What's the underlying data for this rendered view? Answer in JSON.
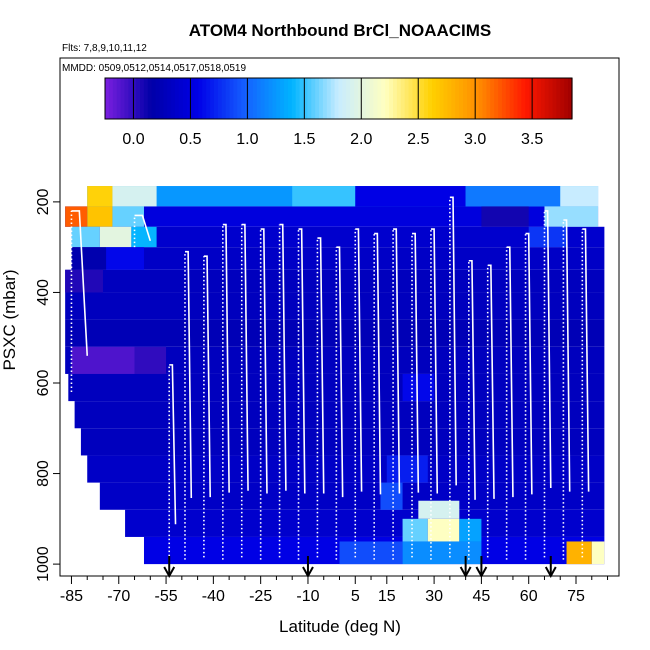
{
  "chart_data": {
    "type": "heatmap",
    "title": "ATOM4 Northbound BrCl_NOAACIMS",
    "flights_label": "Flts: 7,8,9,10,11,12",
    "mmdd_label": "MMDD: 0509,0512,0514,0517,0518,0519",
    "xlabel": "Latitude (deg N)",
    "ylabel": "PSXC (mbar)",
    "xlim": [
      -88,
      88
    ],
    "ylim": [
      1020,
      0
    ],
    "x_ticks": [
      -85,
      -70,
      -55,
      -40,
      -25,
      -10,
      5,
      15,
      30,
      45,
      60,
      75
    ],
    "y_ticks": [
      200,
      400,
      600,
      800,
      1000
    ],
    "colorbar": {
      "range": [
        -0.25,
        3.85
      ],
      "ticks": [
        0.0,
        0.5,
        1.0,
        1.5,
        2.0,
        2.5,
        3.0,
        3.5
      ],
      "tick_labels": [
        "0.0",
        "0.5",
        "1.0",
        "1.5",
        "2.0",
        "2.5",
        "3.0",
        "3.5"
      ],
      "colors": [
        "#7b1fe0",
        "#0000a8",
        "#0000e8",
        "#1560ff",
        "#00b4ff",
        "#c8ecff",
        "#ffffc0",
        "#ffd000",
        "#ff8c00",
        "#ff1800",
        "#a00000"
      ]
    },
    "latitude_markers": [
      -54,
      -10,
      40,
      45,
      67
    ],
    "field_description": "BrCl mixing ratio binned by latitude and pressure; mostly 0.0-0.5 with elevated values (2.0-3.0) near 200-250 mbar at high southern/northern latitudes and near 900-950 mbar around 25-40 N",
    "bands": [
      {
        "p_top": 165,
        "p_bot": 210,
        "x0": -80,
        "x1": 82,
        "value": 1.25
      },
      {
        "p_top": 210,
        "p_bot": 255,
        "x0": -87,
        "x1": 82,
        "value": 0.5
      },
      {
        "p_top": 255,
        "p_bot": 300,
        "x0": -85,
        "x1": 84,
        "value": 0.4
      },
      {
        "p_top": 300,
        "p_bot": 350,
        "x0": -85,
        "x1": 84,
        "value": 0.35
      },
      {
        "p_top": 350,
        "p_bot": 400,
        "x0": -87,
        "x1": 84,
        "value": 0.3
      },
      {
        "p_top": 400,
        "p_bot": 460,
        "x0": -87,
        "x1": 84,
        "value": 0.3
      },
      {
        "p_top": 460,
        "p_bot": 520,
        "x0": -87,
        "x1": 84,
        "value": 0.25
      },
      {
        "p_top": 520,
        "p_bot": 580,
        "x0": -87,
        "x1": 84,
        "value": 0.3
      },
      {
        "p_top": 580,
        "p_bot": 640,
        "x0": -86,
        "x1": 84,
        "value": 0.3
      },
      {
        "p_top": 640,
        "p_bot": 700,
        "x0": -84,
        "x1": 84,
        "value": 0.3
      },
      {
        "p_top": 700,
        "p_bot": 760,
        "x0": -82,
        "x1": 84,
        "value": 0.3
      },
      {
        "p_top": 760,
        "p_bot": 820,
        "x0": -80,
        "x1": 84,
        "value": 0.35
      },
      {
        "p_top": 820,
        "p_bot": 880,
        "x0": -76,
        "x1": 84,
        "value": 0.35
      },
      {
        "p_top": 880,
        "p_bot": 940,
        "x0": -68,
        "x1": 84,
        "value": 0.4
      },
      {
        "p_top": 940,
        "p_bot": 1000,
        "x0": -62,
        "x1": 84,
        "value": 0.55
      }
    ],
    "patches": [
      {
        "p_top": 165,
        "p_bot": 210,
        "x0": -80,
        "x1": -72,
        "value": 2.6
      },
      {
        "p_top": 165,
        "p_bot": 210,
        "x0": -72,
        "x1": -58,
        "value": 1.9
      },
      {
        "p_top": 165,
        "p_bot": 210,
        "x0": -15,
        "x1": 5,
        "value": 1.5
      },
      {
        "p_top": 165,
        "p_bot": 210,
        "x0": 5,
        "x1": 40,
        "value": 0.55
      },
      {
        "p_top": 165,
        "p_bot": 210,
        "x0": 40,
        "x1": 70,
        "value": 1.1
      },
      {
        "p_top": 165,
        "p_bot": 210,
        "x0": 70,
        "x1": 82,
        "value": 1.8
      },
      {
        "p_top": 210,
        "p_bot": 255,
        "x0": -87,
        "x1": -80,
        "value": 3.2
      },
      {
        "p_top": 210,
        "p_bot": 255,
        "x0": -80,
        "x1": -72,
        "value": 2.7
      },
      {
        "p_top": 210,
        "p_bot": 255,
        "x0": -72,
        "x1": -62,
        "value": 1.6
      },
      {
        "p_top": 210,
        "p_bot": 255,
        "x0": 45,
        "x1": 60,
        "value": 0.1
      },
      {
        "p_top": 210,
        "p_bot": 255,
        "x0": 65,
        "x1": 82,
        "value": 1.7
      },
      {
        "p_top": 255,
        "p_bot": 300,
        "x0": -85,
        "x1": -76,
        "value": 1.6
      },
      {
        "p_top": 255,
        "p_bot": 300,
        "x0": -76,
        "x1": -66,
        "value": 2.0
      },
      {
        "p_top": 255,
        "p_bot": 300,
        "x0": -66,
        "x1": -58,
        "value": 1.4
      },
      {
        "p_top": 255,
        "p_bot": 300,
        "x0": 60,
        "x1": 72,
        "value": 0.8
      },
      {
        "p_top": 300,
        "p_bot": 350,
        "x0": -85,
        "x1": -74,
        "value": 0.2
      },
      {
        "p_top": 300,
        "p_bot": 350,
        "x0": -74,
        "x1": -62,
        "value": 0.6
      },
      {
        "p_top": 350,
        "p_bot": 400,
        "x0": -87,
        "x1": -75,
        "value": 0.05
      },
      {
        "p_top": 520,
        "p_bot": 580,
        "x0": -85,
        "x1": -65,
        "value": -0.1
      },
      {
        "p_top": 520,
        "p_bot": 580,
        "x0": -65,
        "x1": -55,
        "value": 0.0
      },
      {
        "p_top": 580,
        "p_bot": 640,
        "x0": 20,
        "x1": 30,
        "value": 0.6
      },
      {
        "p_top": 760,
        "p_bot": 820,
        "x0": 15,
        "x1": 28,
        "value": 0.7
      },
      {
        "p_top": 820,
        "p_bot": 880,
        "x0": 13,
        "x1": 20,
        "value": 0.9
      },
      {
        "p_top": 860,
        "p_bot": 900,
        "x0": 25,
        "x1": 38,
        "value": 1.9
      },
      {
        "p_top": 900,
        "p_bot": 950,
        "x0": 20,
        "x1": 28,
        "value": 1.6
      },
      {
        "p_top": 900,
        "p_bot": 950,
        "x0": 28,
        "x1": 38,
        "value": 2.2
      },
      {
        "p_top": 900,
        "p_bot": 950,
        "x0": 38,
        "x1": 45,
        "value": 1.3
      },
      {
        "p_top": 950,
        "p_bot": 1000,
        "x0": 0,
        "x1": 20,
        "value": 0.9
      },
      {
        "p_top": 950,
        "p_bot": 1000,
        "x0": 20,
        "x1": 45,
        "value": 1.2
      },
      {
        "p_top": 950,
        "p_bot": 1000,
        "x0": 72,
        "x1": 80,
        "value": 2.8
      },
      {
        "p_top": 950,
        "p_bot": 1000,
        "x0": 80,
        "x1": 84,
        "value": 2.2
      }
    ],
    "flight_track_description": "white vertical profiles: repeated ascents and descents between ~1000 and ~250 mbar; dotted lines show descents, solid segments show level legs",
    "profiles": [
      {
        "x0": -85,
        "x1": -80,
        "p_low": 620,
        "p_high": 220
      },
      {
        "x0": -65,
        "x1": -60,
        "p_low": 300,
        "p_high": 230
      },
      {
        "x0": -54,
        "x1": -52,
        "p_low": 1000,
        "p_high": 560
      },
      {
        "x0": -49,
        "x1": -47,
        "p_low": 990,
        "p_high": 310
      },
      {
        "x0": -43,
        "x1": -41,
        "p_low": 985,
        "p_high": 320
      },
      {
        "x0": -37,
        "x1": -35,
        "p_low": 990,
        "p_high": 250
      },
      {
        "x0": -31,
        "x1": -29,
        "p_low": 985,
        "p_high": 250
      },
      {
        "x0": -25,
        "x1": -23,
        "p_low": 990,
        "p_high": 260
      },
      {
        "x0": -19,
        "x1": -17,
        "p_low": 985,
        "p_high": 250
      },
      {
        "x0": -13,
        "x1": -11,
        "p_low": 990,
        "p_high": 260
      },
      {
        "x0": -7,
        "x1": -5,
        "p_low": 985,
        "p_high": 280
      },
      {
        "x0": -1,
        "x1": 1,
        "p_low": 990,
        "p_high": 300
      },
      {
        "x0": 5,
        "x1": 7,
        "p_low": 985,
        "p_high": 260
      },
      {
        "x0": 11,
        "x1": 13,
        "p_low": 990,
        "p_high": 270
      },
      {
        "x0": 17,
        "x1": 19,
        "p_low": 990,
        "p_high": 260
      },
      {
        "x0": 23,
        "x1": 25,
        "p_low": 985,
        "p_high": 270
      },
      {
        "x0": 29,
        "x1": 31,
        "p_low": 990,
        "p_high": 260
      },
      {
        "x0": 35,
        "x1": 37,
        "p_low": 985,
        "p_high": 190
      },
      {
        "x0": 41,
        "x1": 43,
        "p_low": 990,
        "p_high": 330
      },
      {
        "x0": 47,
        "x1": 49,
        "p_low": 985,
        "p_high": 340
      },
      {
        "x0": 53,
        "x1": 55,
        "p_low": 990,
        "p_high": 300
      },
      {
        "x0": 59,
        "x1": 61,
        "p_low": 990,
        "p_high": 270
      },
      {
        "x0": 65,
        "x1": 67,
        "p_low": 985,
        "p_high": 220
      },
      {
        "x0": 71,
        "x1": 73,
        "p_low": 990,
        "p_high": 240
      },
      {
        "x0": 77,
        "x1": 79,
        "p_low": 985,
        "p_high": 260
      }
    ]
  }
}
